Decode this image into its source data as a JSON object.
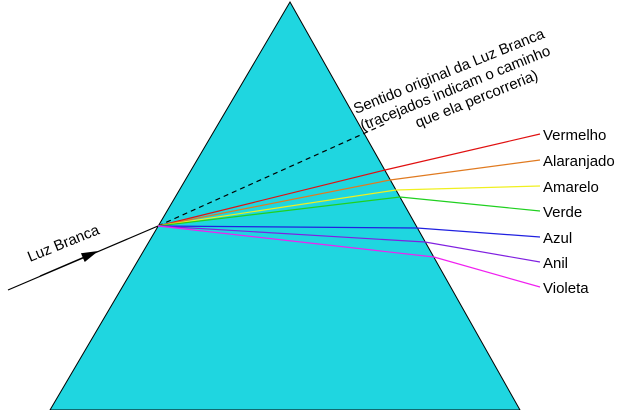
{
  "incoming_label": "Luz Branca",
  "note": {
    "lines": [
      "Sentido original da Luz Branca",
      "(tracejados indicam o caminho",
      "que ela percorreria)"
    ]
  },
  "colors": [
    "Vermelho",
    "Alaranjado",
    "Amarelo",
    "Verde",
    "Azul",
    "Anil",
    "Violeta"
  ]
}
